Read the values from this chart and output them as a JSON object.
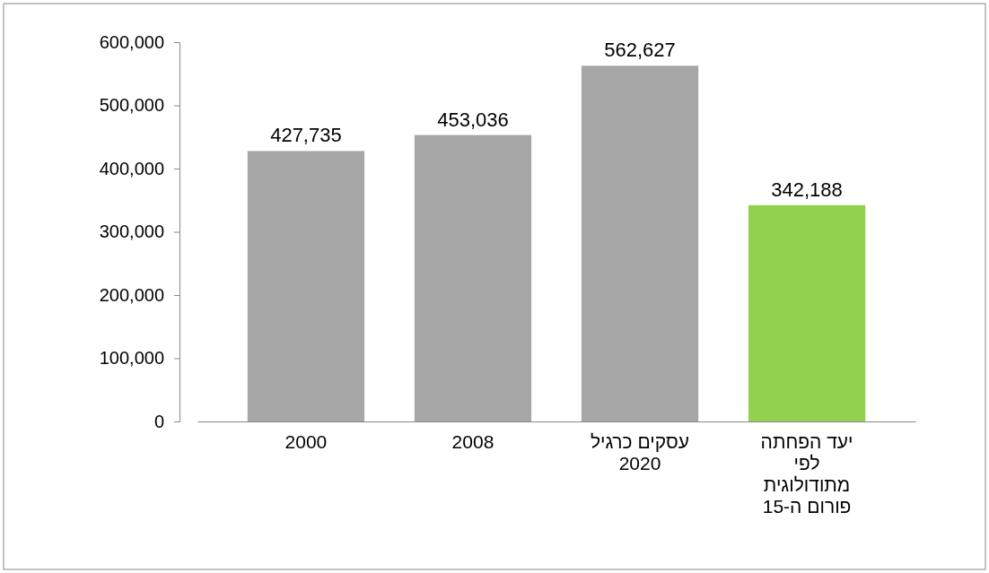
{
  "chart_data": {
    "type": "bar",
    "categories": [
      "2000",
      "2008",
      "עסקים כרגיל 2020",
      "יעד הפחתה לפי מתודולוגית פורום ה-15"
    ],
    "values": [
      427735,
      453036,
      562627,
      342188
    ],
    "colors": [
      "#a6a6a6",
      "#a6a6a6",
      "#a6a6a6",
      "#92d050"
    ],
    "value_labels": [
      "427,735",
      "453,036",
      "562,627",
      "342,188"
    ],
    "ylim": [
      0,
      600000
    ],
    "yticks": [
      {
        "value": 0,
        "label": "0"
      },
      {
        "value": 100000,
        "label": "100,000"
      },
      {
        "value": 200000,
        "label": "200,000"
      },
      {
        "value": 300000,
        "label": "300,000"
      },
      {
        "value": 400000,
        "label": "400,000"
      },
      {
        "value": 500000,
        "label": "500,000"
      },
      {
        "value": 600000,
        "label": "600,000"
      }
    ],
    "grid": false
  }
}
